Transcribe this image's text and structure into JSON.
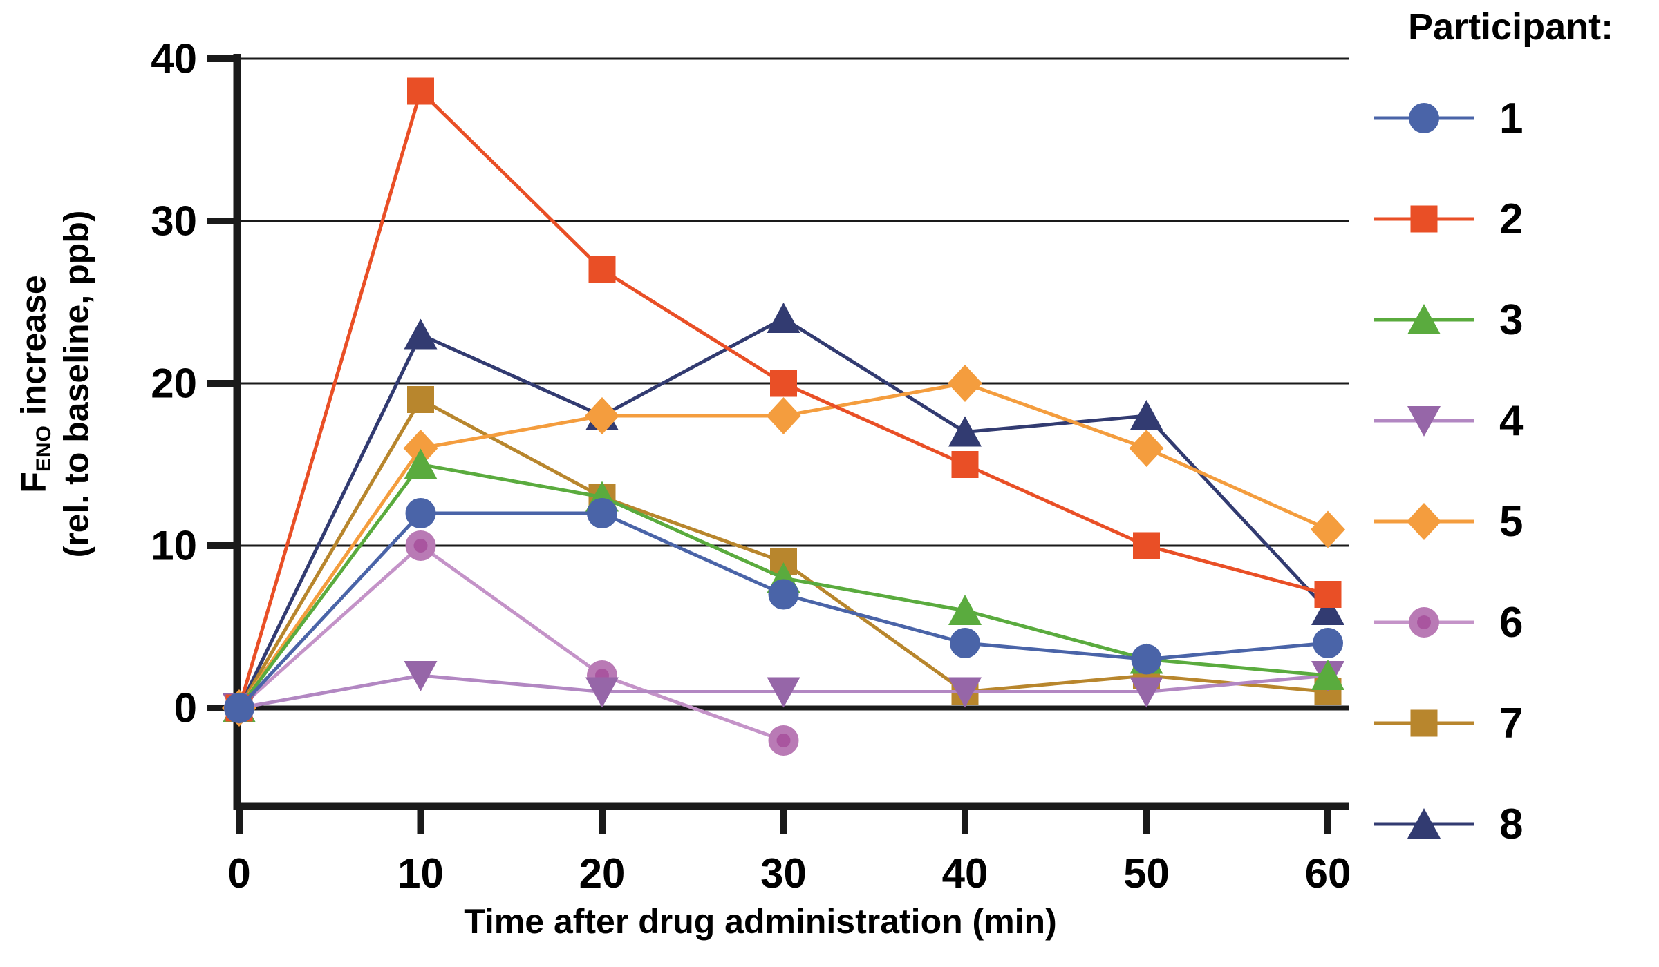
{
  "labels": {
    "y_prefix": "F",
    "y_sub": "ENO",
    "y_rest": " increase",
    "y_line2": "(rel. to baseline, ppb)",
    "x_label": "Time after drug administration (min)",
    "legend_title": "Participant:"
  },
  "colors": {
    "axis": "#1a1a1a",
    "gridline": "#1a1a1a",
    "background": "#ffffff",
    "text": "#000000"
  },
  "chart_data": {
    "type": "line",
    "title": "",
    "xlabel": "Time after drug administration (min)",
    "ylabel": "FENO increase (rel. to baseline, ppb)",
    "x": [
      0,
      10,
      20,
      30,
      40,
      50,
      60
    ],
    "x_ticks": [
      0,
      10,
      20,
      30,
      40,
      50,
      60
    ],
    "y_ticks": [
      0,
      10,
      20,
      30,
      40
    ],
    "xlim": [
      0,
      60
    ],
    "ylim": [
      -6,
      40
    ],
    "grid": true,
    "legend_position": "right",
    "legend_title": "Participant:",
    "series": [
      {
        "name": "1",
        "marker": "circle",
        "color": "#4a64a8",
        "line_color": "#4a64a8",
        "values": [
          0,
          12,
          12,
          7,
          4,
          3,
          4
        ]
      },
      {
        "name": "2",
        "marker": "square",
        "color": "#e94f26",
        "line_color": "#e94f26",
        "values": [
          0,
          38,
          27,
          20,
          15,
          10,
          7
        ]
      },
      {
        "name": "3",
        "marker": "triangle-up",
        "color": "#5aab3e",
        "line_color": "#5aab3e",
        "values": [
          0,
          15,
          13,
          8,
          6,
          3,
          2
        ]
      },
      {
        "name": "4",
        "marker": "triangle-down",
        "color": "#9666a8",
        "line_color": "#b287c2",
        "values": [
          0,
          2,
          1,
          1,
          1,
          1,
          2
        ]
      },
      {
        "name": "5",
        "marker": "diamond",
        "color": "#f49d3e",
        "line_color": "#f49d3e",
        "values": [
          0,
          16,
          18,
          18,
          20,
          16,
          11
        ]
      },
      {
        "name": "6",
        "marker": "circle",
        "color": "#b97ab5",
        "inner_color": "#a9559f",
        "line_color": "#c493c8",
        "values": [
          0,
          10,
          2,
          -2,
          null,
          null,
          null
        ]
      },
      {
        "name": "7",
        "marker": "square",
        "color": "#b8862d",
        "line_color": "#b8862d",
        "values": [
          0,
          19,
          13,
          9,
          1,
          2,
          1
        ]
      },
      {
        "name": "8",
        "marker": "triangle-up",
        "color": "#323b71",
        "line_color": "#323b71",
        "values": [
          0,
          23,
          18,
          24,
          17,
          18,
          6
        ]
      }
    ]
  }
}
